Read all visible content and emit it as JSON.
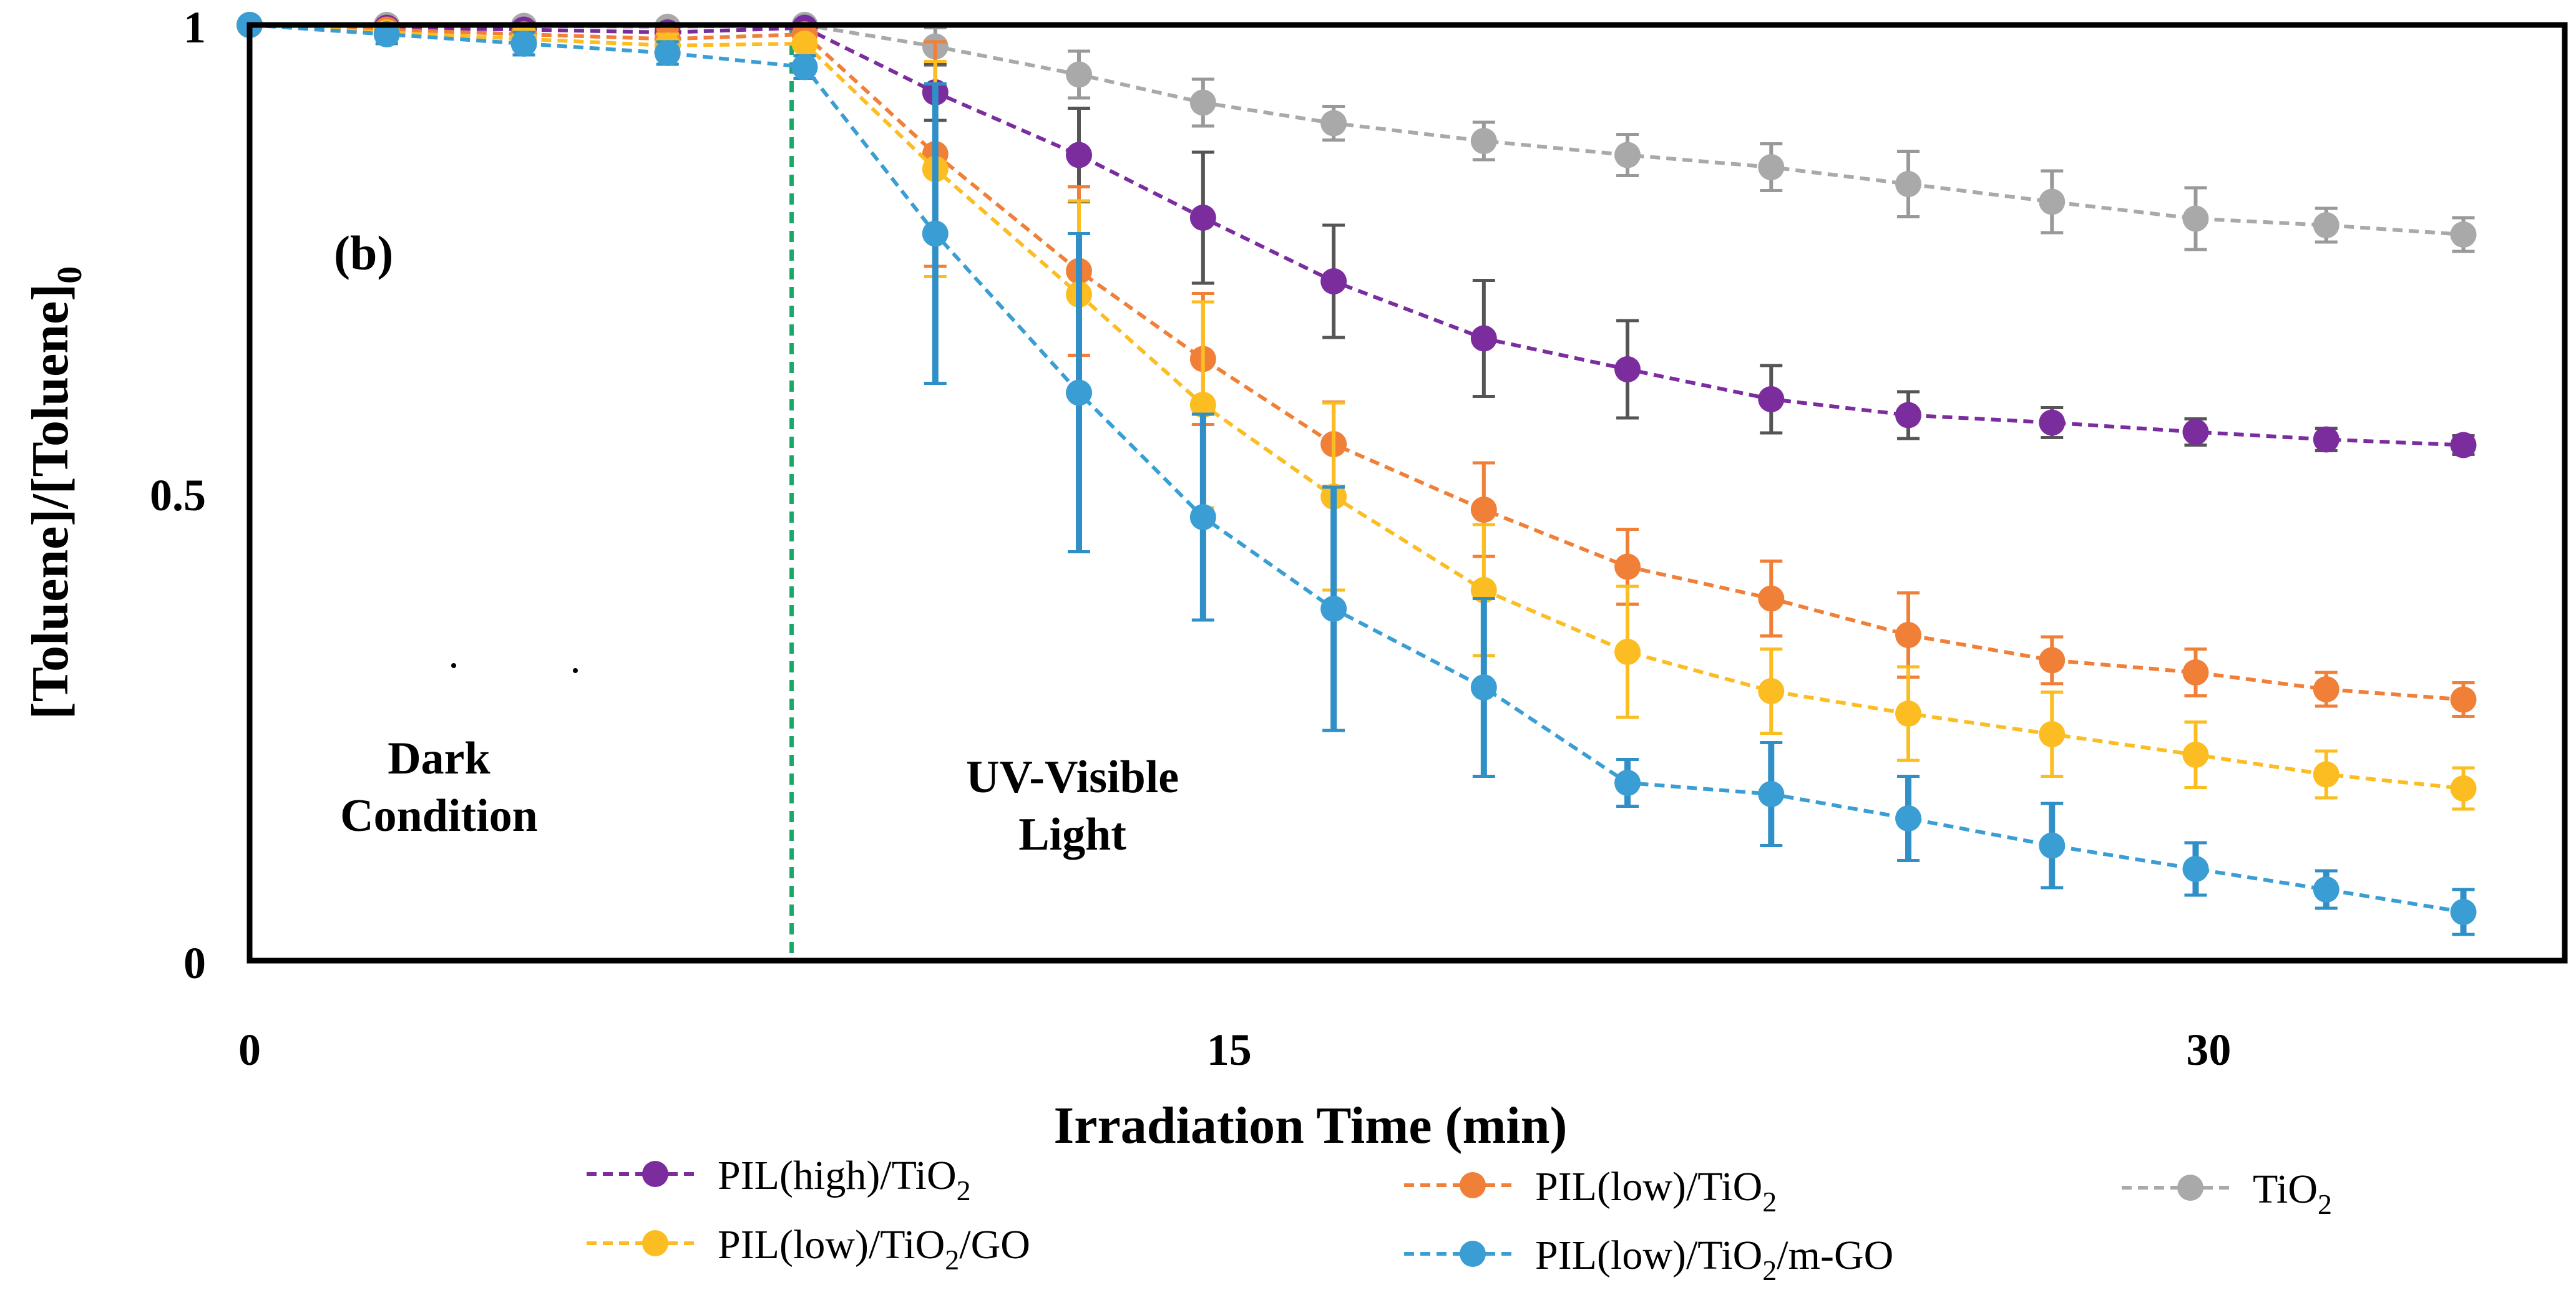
{
  "chart_data": {
    "type": "line",
    "title": "",
    "panel_label": "(b)",
    "xlabel": "Irradiation Time (min)",
    "ylabel": "[Toluene]/[Toluene]",
    "ylabel_subscript": "0",
    "xlim": [
      0,
      34
    ],
    "ylim": [
      0,
      1
    ],
    "xticks": [
      "0",
      "15",
      "30"
    ],
    "xtick_values": [
      0,
      15,
      30
    ],
    "yticks": [
      "0",
      "0.5",
      "1"
    ],
    "ytick_values": [
      0,
      0.5,
      1
    ],
    "grid": false,
    "legend_position": "bottom",
    "divider_x": 8.3,
    "divider_color": "#1aa86a",
    "annotations": [
      {
        "lines": [
          "Dark",
          "Condition"
        ],
        "x": 2.9,
        "y": 0.2
      },
      {
        "lines": [
          "UV-Visible",
          "Light"
        ],
        "x": 12.6,
        "y": 0.18
      }
    ],
    "series": [
      {
        "name": "TiO2",
        "label_main": "TiO",
        "label_sub": "2",
        "label_after": "",
        "color": "#a9a9a9",
        "error_color": "#999999",
        "x": [
          0,
          2.1,
          4.2,
          6.4,
          8.5,
          10.5,
          12.7,
          14.6,
          16.6,
          18.9,
          21.1,
          23.3,
          25.4,
          27.6,
          29.8,
          31.8,
          33.9
        ],
        "y": [
          1.0,
          1.0,
          0.999,
          0.998,
          1.0,
          0.977,
          0.947,
          0.917,
          0.895,
          0.876,
          0.861,
          0.848,
          0.83,
          0.811,
          0.793,
          0.786,
          0.776
        ],
        "err": [
          0,
          0.005,
          0.006,
          0.006,
          0,
          0.02,
          0.025,
          0.025,
          0.018,
          0.02,
          0.022,
          0.025,
          0.035,
          0.033,
          0.033,
          0.018,
          0.018
        ]
      },
      {
        "name": "PIL(high)/TiO2",
        "label_main": "PIL(high)/TiO",
        "label_sub": "2",
        "label_after": "",
        "color": "#7b2d9e",
        "error_color": "#555555",
        "x": [
          0,
          2.1,
          4.2,
          6.4,
          8.5,
          10.5,
          12.7,
          14.6,
          16.6,
          18.9,
          21.1,
          23.3,
          25.4,
          27.6,
          29.8,
          31.8,
          33.9
        ],
        "y": [
          1.0,
          0.997,
          0.995,
          0.992,
          0.997,
          0.928,
          0.861,
          0.794,
          0.726,
          0.665,
          0.632,
          0.6,
          0.583,
          0.575,
          0.565,
          0.557,
          0.551
        ],
        "err": [
          0,
          0.006,
          0.007,
          0.008,
          0,
          0.03,
          0.05,
          0.07,
          0.06,
          0.062,
          0.052,
          0.036,
          0.025,
          0.016,
          0.014,
          0.012,
          0.01
        ]
      },
      {
        "name": "PIL(low)/TiO2",
        "label_main": "PIL(low)/TiO",
        "label_sub": "2",
        "label_after": "",
        "color": "#f07f38",
        "error_color": "#f07f38",
        "x": [
          0,
          2.1,
          4.2,
          6.4,
          8.5,
          10.5,
          12.7,
          14.6,
          16.6,
          18.9,
          21.1,
          23.3,
          25.4,
          27.6,
          29.8,
          31.8,
          33.9
        ],
        "y": [
          1.0,
          0.995,
          0.99,
          0.985,
          0.99,
          0.862,
          0.737,
          0.643,
          0.552,
          0.482,
          0.421,
          0.387,
          0.348,
          0.321,
          0.308,
          0.29,
          0.279
        ],
        "err": [
          0,
          0.006,
          0.008,
          0.01,
          0,
          0.12,
          0.09,
          0.07,
          0.045,
          0.05,
          0.04,
          0.04,
          0.045,
          0.025,
          0.025,
          0.018,
          0.018
        ]
      },
      {
        "name": "PIL(low)/TiO2/GO",
        "label_main": "PIL(low)/TiO",
        "label_sub": "2",
        "label_after": "/GO",
        "color": "#fbbd21",
        "error_color": "#fbbd21",
        "x": [
          0,
          2.1,
          4.2,
          6.4,
          8.5,
          10.5,
          12.7,
          14.6,
          16.6,
          18.9,
          21.1,
          23.3,
          25.4,
          27.6,
          29.8,
          31.8,
          33.9
        ],
        "y": [
          1.0,
          0.992,
          0.985,
          0.978,
          0.98,
          0.846,
          0.712,
          0.594,
          0.496,
          0.396,
          0.33,
          0.288,
          0.264,
          0.242,
          0.22,
          0.199,
          0.184
        ],
        "err": [
          0,
          0.008,
          0.01,
          0.012,
          0,
          0.115,
          0.1,
          0.11,
          0.1,
          0.07,
          0.07,
          0.045,
          0.05,
          0.045,
          0.035,
          0.025,
          0.022
        ]
      },
      {
        "name": "PIL(low)/TiO2/m-GO",
        "label_main": "PIL(low)/TiO",
        "label_sub": "2",
        "label_after": "/m-GO",
        "color": "#3a9dd3",
        "error_color": "#2f8fc6",
        "x": [
          0,
          2.1,
          4.2,
          6.4,
          8.5,
          10.5,
          12.7,
          14.6,
          16.6,
          18.9,
          21.1,
          23.3,
          25.4,
          27.6,
          29.8,
          31.8,
          33.9
        ],
        "y": [
          1.0,
          0.99,
          0.98,
          0.97,
          0.955,
          0.777,
          0.607,
          0.474,
          0.376,
          0.292,
          0.19,
          0.178,
          0.152,
          0.123,
          0.098,
          0.076,
          0.052
        ],
        "err": [
          0,
          0.01,
          0.012,
          0.012,
          0.012,
          0.16,
          0.17,
          0.11,
          0.13,
          0.095,
          0.025,
          0.055,
          0.045,
          0.045,
          0.028,
          0.02,
          0.024
        ]
      }
    ],
    "legend_order": [
      1,
      2,
      0,
      3,
      4
    ]
  }
}
